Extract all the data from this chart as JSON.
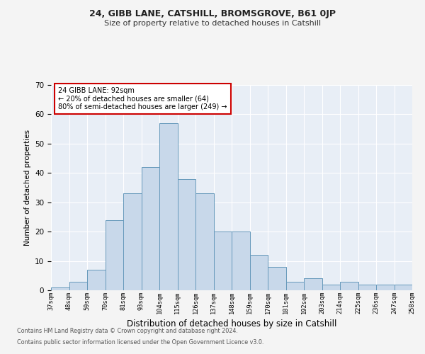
{
  "title1": "24, GIBB LANE, CATSHILL, BROMSGROVE, B61 0JP",
  "title2": "Size of property relative to detached houses in Catshill",
  "xlabel": "Distribution of detached houses by size in Catshill",
  "ylabel": "Number of detached properties",
  "bar_values": [
    1,
    3,
    7,
    24,
    33,
    42,
    57,
    38,
    33,
    20,
    20,
    12,
    8,
    3,
    4,
    2,
    3,
    2,
    2,
    2
  ],
  "bar_labels": [
    "37sqm",
    "48sqm",
    "59sqm",
    "70sqm",
    "81sqm",
    "93sqm",
    "104sqm",
    "115sqm",
    "126sqm",
    "137sqm",
    "148sqm",
    "159sqm",
    "170sqm",
    "181sqm",
    "192sqm",
    "203sqm",
    "214sqm",
    "225sqm",
    "236sqm",
    "247sqm",
    "258sqm"
  ],
  "bar_color": "#c8d8ea",
  "bar_edge_color": "#6699bb",
  "bg_color": "#e8eef6",
  "grid_color": "#ffffff",
  "annotation_text": "24 GIBB LANE: 92sqm\n← 20% of detached houses are smaller (64)\n80% of semi-detached houses are larger (249) →",
  "annotation_box_color": "#ffffff",
  "annotation_box_edge": "#cc0000",
  "ylim": [
    0,
    70
  ],
  "yticks": [
    0,
    10,
    20,
    30,
    40,
    50,
    60,
    70
  ],
  "footer1": "Contains HM Land Registry data © Crown copyright and database right 2024.",
  "footer2": "Contains public sector information licensed under the Open Government Licence v3.0.",
  "fig_bg": "#f4f4f4"
}
